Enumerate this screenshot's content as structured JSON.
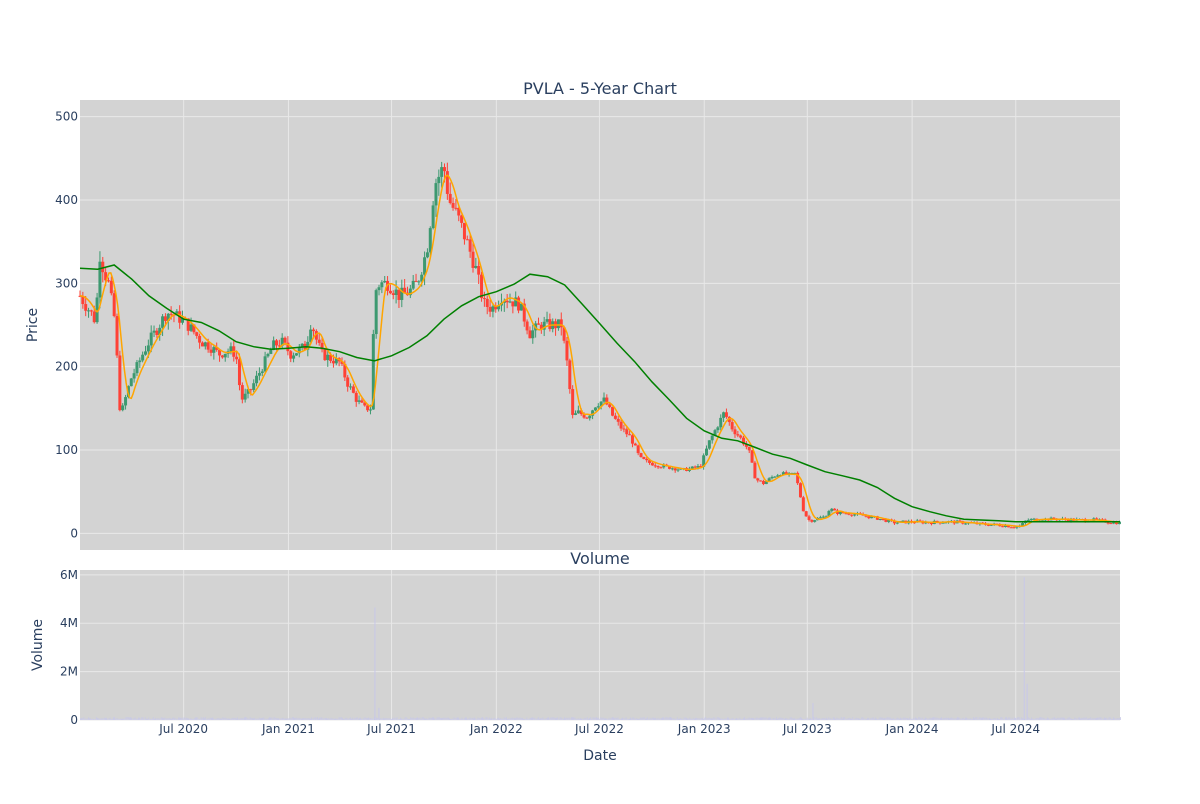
{
  "chart_data": [
    {
      "type": "candlestick",
      "title": "PVLA - 5-Year Chart",
      "ylabel": "Price",
      "ylim": [
        -20,
        520
      ],
      "yticks": [
        0,
        100,
        200,
        300,
        400,
        500
      ],
      "xlim": [
        "2020-01-01",
        "2024-12-31"
      ],
      "grid": true,
      "colors": {
        "up": "#3d9970",
        "down": "#ff4136",
        "ma_short": "#ffa500",
        "ma_long": "#008000",
        "plot_bg": "#d3d3d3",
        "grid": "#e8e8e8"
      },
      "close_series": [
        [
          "2020-01-01",
          285
        ],
        [
          "2020-01-10",
          275
        ],
        [
          "2020-01-20",
          265
        ],
        [
          "2020-01-28",
          255
        ],
        [
          "2020-02-02",
          300
        ],
        [
          "2020-02-05",
          335
        ],
        [
          "2020-02-12",
          315
        ],
        [
          "2020-02-20",
          300
        ],
        [
          "2020-03-01",
          260
        ],
        [
          "2020-03-06",
          210
        ],
        [
          "2020-03-12",
          140
        ],
        [
          "2020-03-20",
          160
        ],
        [
          "2020-03-30",
          185
        ],
        [
          "2020-04-10",
          200
        ],
        [
          "2020-04-20",
          215
        ],
        [
          "2020-05-01",
          230
        ],
        [
          "2020-05-15",
          245
        ],
        [
          "2020-06-01",
          265
        ],
        [
          "2020-06-15",
          262
        ],
        [
          "2020-07-01",
          255
        ],
        [
          "2020-07-15",
          245
        ],
        [
          "2020-08-01",
          230
        ],
        [
          "2020-08-15",
          225
        ],
        [
          "2020-09-01",
          215
        ],
        [
          "2020-09-20",
          220
        ],
        [
          "2020-10-01",
          215
        ],
        [
          "2020-10-10",
          160
        ],
        [
          "2020-10-25",
          170
        ],
        [
          "2020-11-05",
          185
        ],
        [
          "2020-11-20",
          205
        ],
        [
          "2020-12-05",
          225
        ],
        [
          "2020-12-20",
          230
        ],
        [
          "2021-01-05",
          215
        ],
        [
          "2021-01-20",
          220
        ],
        [
          "2021-02-01",
          225
        ],
        [
          "2021-02-10",
          255
        ],
        [
          "2021-02-20",
          230
        ],
        [
          "2021-03-01",
          215
        ],
        [
          "2021-03-15",
          210
        ],
        [
          "2021-04-01",
          205
        ],
        [
          "2021-04-15",
          180
        ],
        [
          "2021-05-01",
          160
        ],
        [
          "2021-05-15",
          150
        ],
        [
          "2021-05-25",
          150
        ],
        [
          "2021-06-02",
          290
        ],
        [
          "2021-06-10",
          300
        ],
        [
          "2021-06-25",
          300
        ],
        [
          "2021-07-15",
          285
        ],
        [
          "2021-08-01",
          290
        ],
        [
          "2021-08-15",
          300
        ],
        [
          "2021-09-01",
          340
        ],
        [
          "2021-09-15",
          420
        ],
        [
          "2021-10-01",
          440
        ],
        [
          "2021-10-10",
          400
        ],
        [
          "2021-10-25",
          380
        ],
        [
          "2021-11-10",
          350
        ],
        [
          "2021-11-25",
          320
        ],
        [
          "2021-12-10",
          275
        ],
        [
          "2021-12-25",
          270
        ],
        [
          "2022-01-10",
          285
        ],
        [
          "2022-01-25",
          280
        ],
        [
          "2022-02-10",
          275
        ],
        [
          "2022-03-01",
          240
        ],
        [
          "2022-03-20",
          250
        ],
        [
          "2022-04-10",
          250
        ],
        [
          "2022-04-25",
          250
        ],
        [
          "2022-05-05",
          205
        ],
        [
          "2022-05-15",
          140
        ],
        [
          "2022-05-25",
          145
        ],
        [
          "2022-06-10",
          140
        ],
        [
          "2022-06-25",
          155
        ],
        [
          "2022-07-10",
          160
        ],
        [
          "2022-07-25",
          140
        ],
        [
          "2022-08-10",
          125
        ],
        [
          "2022-08-25",
          115
        ],
        [
          "2022-09-10",
          90
        ],
        [
          "2022-09-25",
          85
        ],
        [
          "2022-10-10",
          82
        ],
        [
          "2022-10-25",
          80
        ],
        [
          "2022-11-10",
          78
        ],
        [
          "2022-11-25",
          76
        ],
        [
          "2022-12-10",
          78
        ],
        [
          "2022-12-25",
          80
        ],
        [
          "2023-01-10",
          110
        ],
        [
          "2023-01-25",
          130
        ],
        [
          "2023-02-05",
          145
        ],
        [
          "2023-02-20",
          125
        ],
        [
          "2023-03-05",
          115
        ],
        [
          "2023-03-20",
          100
        ],
        [
          "2023-04-01",
          65
        ],
        [
          "2023-04-15",
          60
        ],
        [
          "2023-05-01",
          68
        ],
        [
          "2023-05-15",
          72
        ],
        [
          "2023-06-01",
          70
        ],
        [
          "2023-06-10",
          72
        ],
        [
          "2023-06-25",
          25
        ],
        [
          "2023-07-05",
          15
        ],
        [
          "2023-07-20",
          18
        ],
        [
          "2023-08-01",
          20
        ],
        [
          "2023-08-10",
          30
        ],
        [
          "2023-08-20",
          25
        ],
        [
          "2023-09-10",
          24
        ],
        [
          "2023-10-01",
          22
        ],
        [
          "2023-11-01",
          18
        ],
        [
          "2023-12-01",
          13
        ],
        [
          "2024-01-01",
          14
        ],
        [
          "2024-02-01",
          13
        ],
        [
          "2024-03-01",
          14
        ],
        [
          "2024-04-01",
          13
        ],
        [
          "2024-05-01",
          11
        ],
        [
          "2024-06-01",
          10
        ],
        [
          "2024-07-01",
          8
        ],
        [
          "2024-07-10",
          9
        ],
        [
          "2024-07-20",
          16
        ],
        [
          "2024-08-15",
          17
        ],
        [
          "2024-09-15",
          17
        ],
        [
          "2024-10-15",
          16
        ],
        [
          "2024-11-15",
          16
        ],
        [
          "2024-12-20",
          13
        ]
      ],
      "ma_long_series": [
        [
          "2020-01-01",
          318
        ],
        [
          "2020-02-01",
          317
        ],
        [
          "2020-03-01",
          322
        ],
        [
          "2020-04-01",
          305
        ],
        [
          "2020-05-01",
          285
        ],
        [
          "2020-06-01",
          270
        ],
        [
          "2020-07-01",
          257
        ],
        [
          "2020-08-01",
          253
        ],
        [
          "2020-09-01",
          243
        ],
        [
          "2020-10-01",
          230
        ],
        [
          "2020-11-01",
          224
        ],
        [
          "2020-12-01",
          221
        ],
        [
          "2021-01-01",
          222
        ],
        [
          "2021-02-01",
          224
        ],
        [
          "2021-03-01",
          222
        ],
        [
          "2021-04-01",
          218
        ],
        [
          "2021-05-01",
          211
        ],
        [
          "2021-06-01",
          207
        ],
        [
          "2021-07-01",
          213
        ],
        [
          "2021-08-01",
          223
        ],
        [
          "2021-09-01",
          237
        ],
        [
          "2021-10-01",
          257
        ],
        [
          "2021-11-01",
          273
        ],
        [
          "2021-12-01",
          284
        ],
        [
          "2022-01-01",
          290
        ],
        [
          "2022-02-01",
          299
        ],
        [
          "2022-03-01",
          311
        ],
        [
          "2022-04-01",
          308
        ],
        [
          "2022-05-01",
          298
        ],
        [
          "2022-06-01",
          275
        ],
        [
          "2022-07-01",
          252
        ],
        [
          "2022-08-01",
          228
        ],
        [
          "2022-09-01",
          206
        ],
        [
          "2022-10-01",
          182
        ],
        [
          "2022-11-01",
          160
        ],
        [
          "2022-12-01",
          138
        ],
        [
          "2023-01-01",
          123
        ],
        [
          "2023-02-01",
          114
        ],
        [
          "2023-03-01",
          111
        ],
        [
          "2023-04-01",
          103
        ],
        [
          "2023-05-01",
          95
        ],
        [
          "2023-06-01",
          90
        ],
        [
          "2023-07-01",
          82
        ],
        [
          "2023-08-01",
          74
        ],
        [
          "2023-09-01",
          69
        ],
        [
          "2023-10-01",
          64
        ],
        [
          "2023-11-01",
          55
        ],
        [
          "2023-12-01",
          42
        ],
        [
          "2024-01-01",
          32
        ],
        [
          "2024-02-01",
          26
        ],
        [
          "2024-03-01",
          21
        ],
        [
          "2024-04-01",
          17
        ],
        [
          "2024-05-01",
          16
        ],
        [
          "2024-06-01",
          15
        ],
        [
          "2024-07-01",
          14
        ],
        [
          "2024-08-01",
          14
        ],
        [
          "2024-09-01",
          14
        ],
        [
          "2024-10-01",
          14
        ],
        [
          "2024-11-01",
          14
        ],
        [
          "2024-12-31",
          14
        ]
      ]
    },
    {
      "type": "bar",
      "title": "Volume",
      "ylabel": "Volume",
      "xlabel": "Date",
      "ylim": [
        0,
        6200000
      ],
      "yticks": [
        0,
        2000000,
        4000000,
        6000000
      ],
      "ytick_labels": [
        "0",
        "2M",
        "4M",
        "6M"
      ],
      "xlim": [
        "2020-01-01",
        "2024-12-31"
      ],
      "xtick_dates": [
        "2020-07-01",
        "2021-01-01",
        "2021-07-01",
        "2022-01-01",
        "2022-07-01",
        "2023-01-01",
        "2023-07-01",
        "2024-01-01",
        "2024-07-01"
      ],
      "xtick_labels": [
        "Jul 2020",
        "Jan 2021",
        "Jul 2021",
        "Jan 2022",
        "Jul 2022",
        "Jan 2023",
        "Jul 2023",
        "Jan 2024",
        "Jul 2024"
      ],
      "baseline_volume": 80000,
      "spikes": [
        [
          "2021-06-01",
          4650000
        ],
        [
          "2021-06-08",
          500000
        ],
        [
          "2023-07-10",
          700000
        ],
        [
          "2024-07-15",
          5900000
        ],
        [
          "2024-07-20",
          1500000
        ]
      ],
      "bar_color": "#c8c8e8"
    }
  ]
}
